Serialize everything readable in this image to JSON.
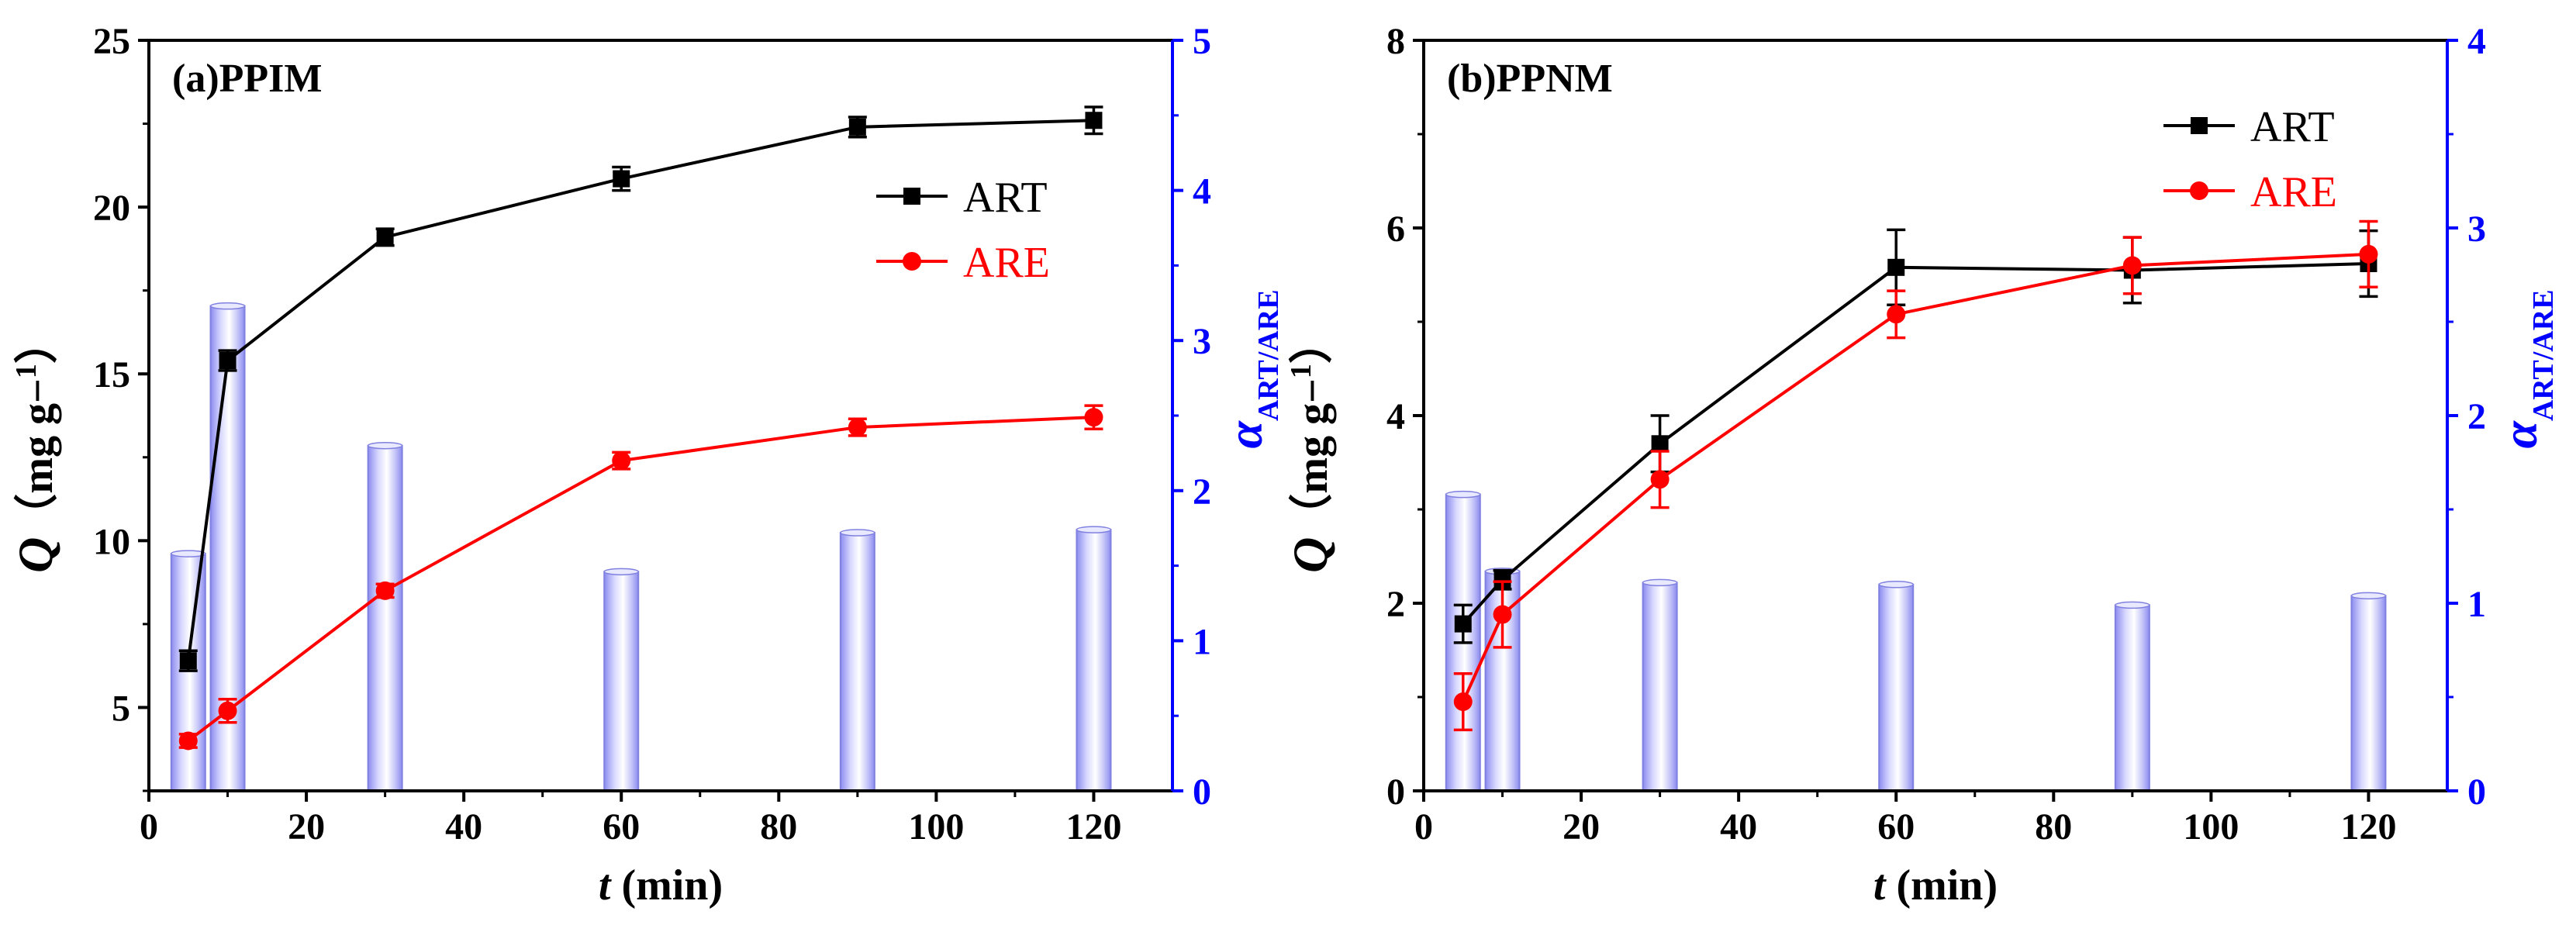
{
  "colors": {
    "art": "#000000",
    "are": "#ff0000",
    "alpha_axis": "#0000ff",
    "bar_fill": "#b8b8f8",
    "bar_edge": "#8080e0"
  },
  "chart_data": [
    {
      "type": "line+bar",
      "panel_title": "(a)PPIM",
      "xlabel": "t (min)",
      "ylabel": "Q（mg g−1）",
      "y2label": "αART/ARE",
      "xlim": [
        0,
        130
      ],
      "ylim": [
        2.5,
        25
      ],
      "y2lim": [
        0,
        5
      ],
      "xticks": [
        0,
        20,
        40,
        60,
        80,
        100,
        120
      ],
      "xtick_labels": [
        "0",
        "20",
        "40",
        "60",
        "80",
        "100",
        "120"
      ],
      "yticks": [
        5,
        10,
        15,
        20,
        25
      ],
      "ytick_labels": [
        "5",
        "10",
        "15",
        "20",
        "25"
      ],
      "y2ticks": [
        0,
        1,
        2,
        3,
        4,
        5
      ],
      "y2tick_labels": [
        "0",
        "1",
        "2",
        "3",
        "4",
        "5"
      ],
      "legend": [
        "ART",
        "ARE"
      ],
      "legend_position": "right-middle",
      "x": [
        5,
        10,
        30,
        60,
        90,
        120
      ],
      "series": [
        {
          "name": "ART",
          "values": [
            6.4,
            15.4,
            19.1,
            20.85,
            22.4,
            22.6
          ],
          "errors": [
            0.3,
            0.3,
            0.25,
            0.35,
            0.3,
            0.4
          ]
        },
        {
          "name": "ARE",
          "values": [
            4.0,
            4.9,
            8.5,
            12.4,
            13.4,
            13.7
          ],
          "errors": [
            0.2,
            0.35,
            0.2,
            0.25,
            0.25,
            0.35
          ]
        }
      ],
      "alpha": [
        1.58,
        3.23,
        2.3,
        1.46,
        1.72,
        1.74
      ]
    },
    {
      "type": "line+bar",
      "panel_title": "(b)PPNM",
      "xlabel": "t (min)",
      "ylabel": "Q（mg g−1）",
      "y2label": "αART/ARE",
      "xlim": [
        0,
        130
      ],
      "ylim": [
        0,
        8
      ],
      "y2lim": [
        0,
        4
      ],
      "xticks": [
        0,
        20,
        40,
        60,
        80,
        100,
        120
      ],
      "xtick_labels": [
        "0",
        "20",
        "40",
        "60",
        "80",
        "100",
        "120"
      ],
      "yticks": [
        0,
        2,
        4,
        6,
        8
      ],
      "ytick_labels": [
        "0",
        "2",
        "4",
        "6",
        "8"
      ],
      "y2ticks": [
        0,
        1,
        2,
        3,
        4
      ],
      "y2tick_labels": [
        "0",
        "1",
        "2",
        "3",
        "4"
      ],
      "legend": [
        "ART",
        "ARE"
      ],
      "legend_position": "top-right",
      "x": [
        5,
        10,
        30,
        60,
        90,
        120
      ],
      "series": [
        {
          "name": "ART",
          "values": [
            1.78,
            2.25,
            3.7,
            5.58,
            5.55,
            5.62
          ],
          "errors": [
            0.2,
            0.1,
            0.3,
            0.4,
            0.35,
            0.35
          ]
        },
        {
          "name": "ARE",
          "values": [
            0.95,
            1.88,
            3.32,
            5.08,
            5.6,
            5.72
          ],
          "errors": [
            0.3,
            0.35,
            0.3,
            0.25,
            0.3,
            0.35
          ]
        }
      ],
      "alpha": [
        1.58,
        1.17,
        1.11,
        1.1,
        0.99,
        1.04
      ]
    }
  ]
}
